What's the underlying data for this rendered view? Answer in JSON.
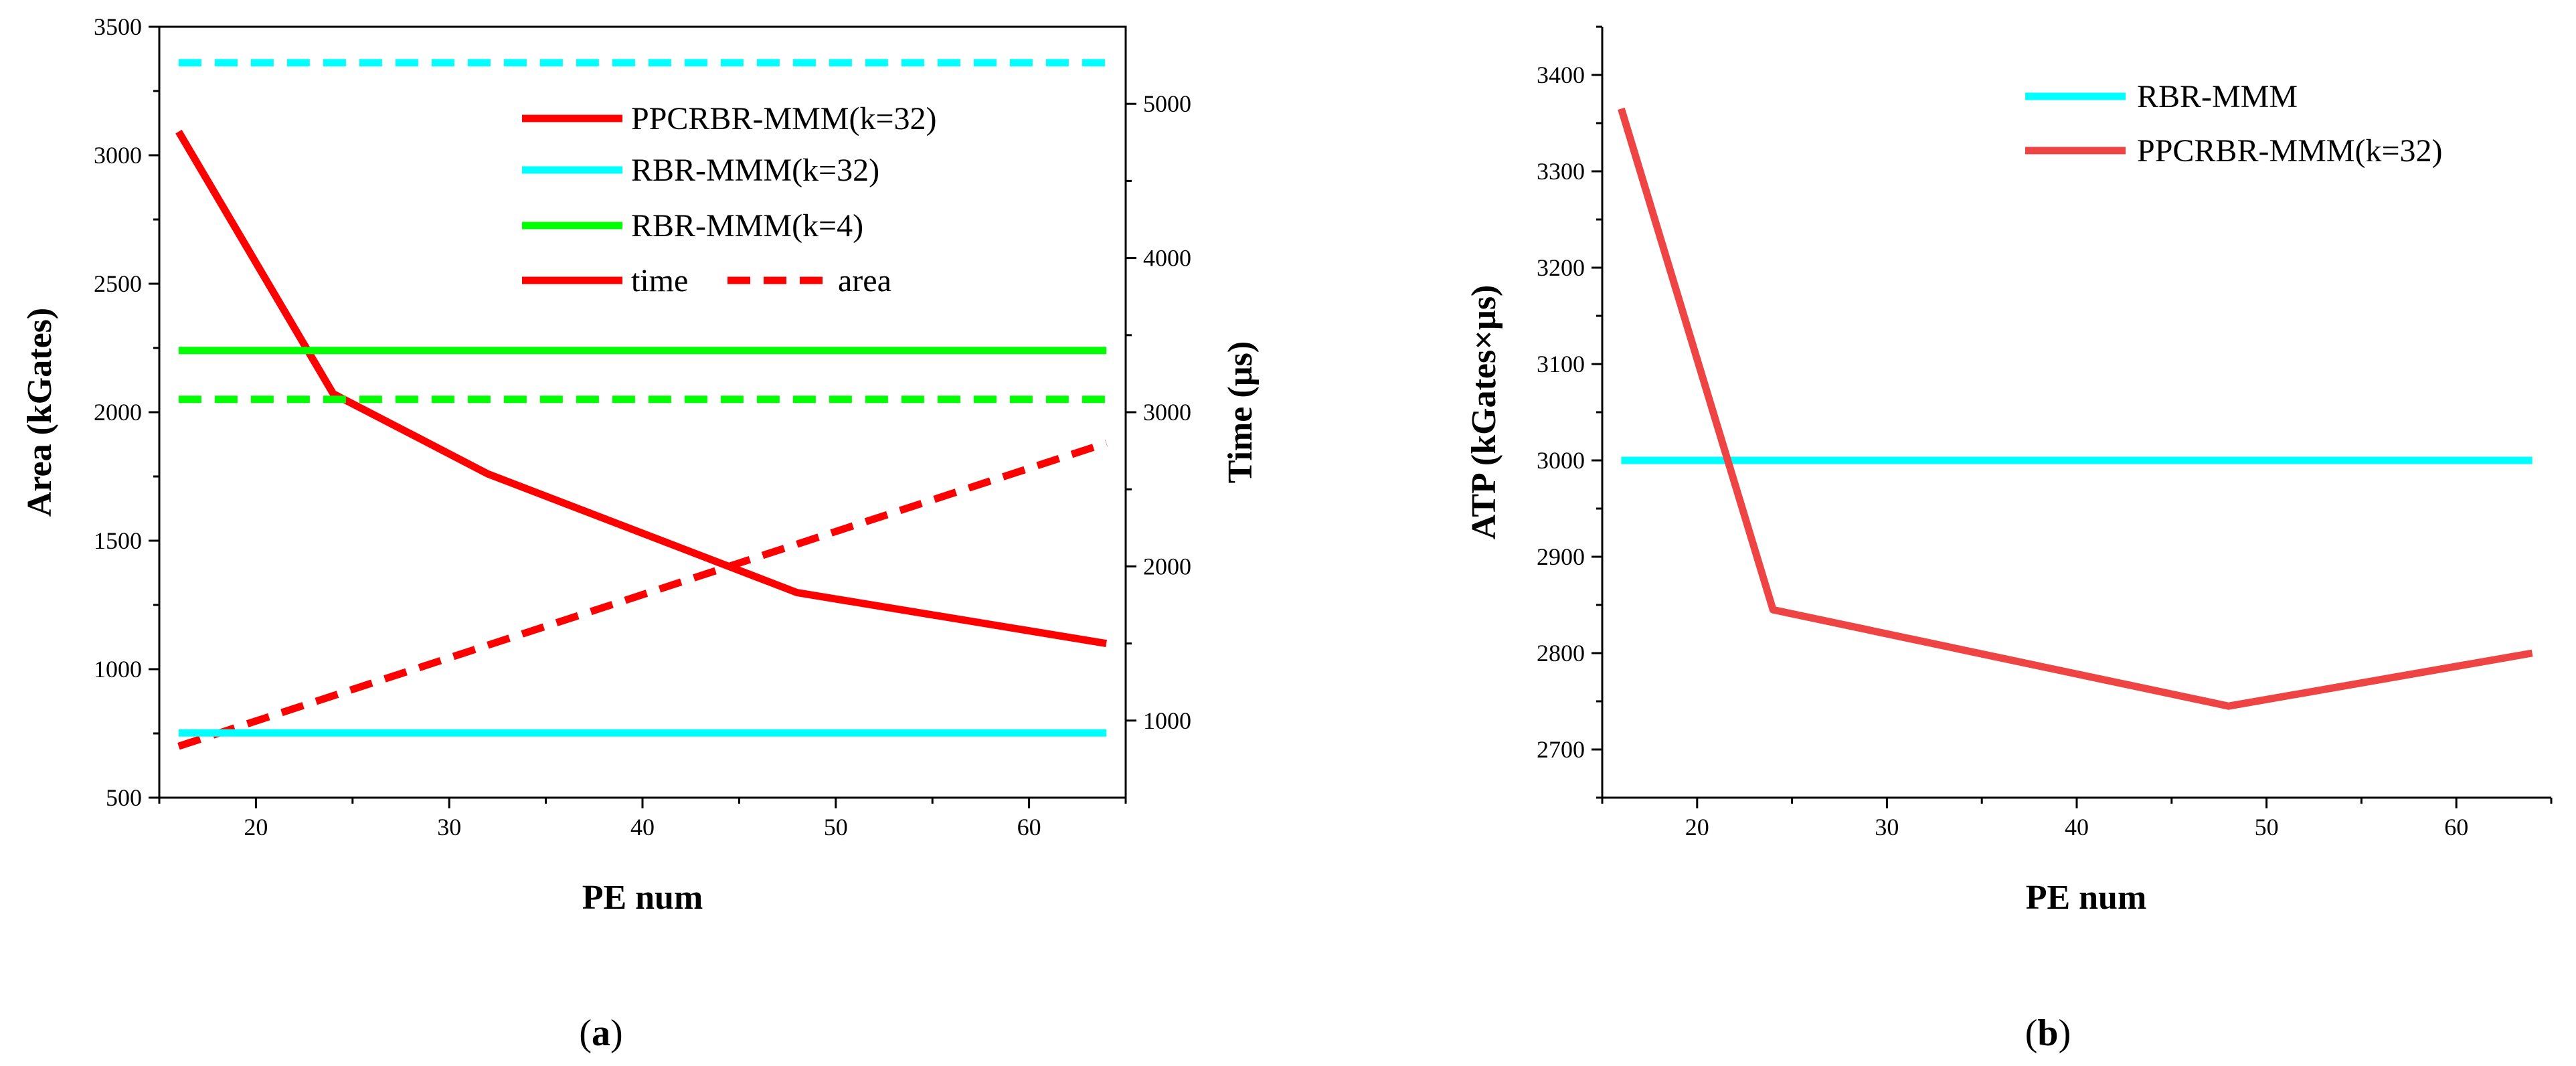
{
  "colors": {
    "red": "#ff0000",
    "cyan": "#00ffff",
    "green": "#00ff00",
    "red_b": "#ef4444",
    "axis": "#000000"
  },
  "chart_data": [
    {
      "id": "a",
      "type": "line",
      "caption": "(a)",
      "caption_letter": "a",
      "xlabel": "PE num",
      "ylabel_left": "Area (kGates)",
      "ylabel_right": "Time (µs)",
      "xlim": [
        15,
        65
      ],
      "ylim_left": [
        500,
        3500
      ],
      "ylim_right": [
        500,
        5500
      ],
      "xticks": [
        20,
        30,
        40,
        50,
        60
      ],
      "yticks_left": [
        500,
        1000,
        1500,
        2000,
        2500,
        3000,
        3500
      ],
      "yticks_right": [
        1000,
        2000,
        3000,
        4000,
        5000
      ],
      "legend_position": "top-right",
      "legend": [
        {
          "label": "PPCRBR-MMM(k=32)",
          "color": "red"
        },
        {
          "label": "RBR-MMM(k=32)",
          "color": "cyan"
        },
        {
          "label": "RBR-MMM(k=4)",
          "color": "green"
        }
      ],
      "legend_style": {
        "solid_label": "time",
        "dashed_label": "area"
      },
      "series": [
        {
          "name": "PPCRBR-MMM(k=32) time",
          "color": "red",
          "dash": false,
          "axis": "right",
          "x": [
            16,
            24,
            32,
            48,
            64
          ],
          "y": [
            4820,
            3120,
            2600,
            1830,
            1500
          ]
        },
        {
          "name": "PPCRBR-MMM(k=32) area",
          "color": "red",
          "dash": true,
          "axis": "left",
          "x": [
            16,
            64
          ],
          "y": [
            700,
            1880
          ]
        },
        {
          "name": "RBR-MMM(k=32) time",
          "color": "cyan",
          "dash": false,
          "axis": "right",
          "x": [
            16,
            64
          ],
          "y": [
            920,
            920
          ]
        },
        {
          "name": "RBR-MMM(k=32) area",
          "color": "cyan",
          "dash": true,
          "axis": "left",
          "x": [
            16,
            64
          ],
          "y": [
            3360,
            3360
          ]
        },
        {
          "name": "RBR-MMM(k=4) time",
          "color": "green",
          "dash": false,
          "axis": "right",
          "x": [
            16,
            64
          ],
          "y": [
            3400,
            3400
          ]
        },
        {
          "name": "RBR-MMM(k=4) area",
          "color": "green",
          "dash": true,
          "axis": "left",
          "x": [
            16,
            64
          ],
          "y": [
            2050,
            2050
          ]
        }
      ]
    },
    {
      "id": "b",
      "type": "line",
      "caption": "(b)",
      "caption_letter": "b",
      "xlabel": "PE num",
      "ylabel": "ATP (kGates×µs)",
      "xlim": [
        15,
        65
      ],
      "ylim": [
        2650,
        3450
      ],
      "xticks": [
        20,
        30,
        40,
        50,
        60
      ],
      "yticks": [
        2700,
        2800,
        2900,
        3000,
        3100,
        3200,
        3300,
        3400
      ],
      "legend_position": "top-right",
      "legend": [
        {
          "label": "RBR-MMM",
          "color": "cyan"
        },
        {
          "label": "PPCRBR-MMM(k=32)",
          "color": "red_b"
        }
      ],
      "series": [
        {
          "name": "RBR-MMM",
          "color": "cyan",
          "x": [
            16,
            64
          ],
          "y": [
            3000,
            3000
          ]
        },
        {
          "name": "PPCRBR-MMM(k=32)",
          "color": "red_b",
          "x": [
            16,
            24,
            48,
            64
          ],
          "y": [
            3365,
            2845,
            2745,
            2800
          ]
        }
      ]
    }
  ]
}
